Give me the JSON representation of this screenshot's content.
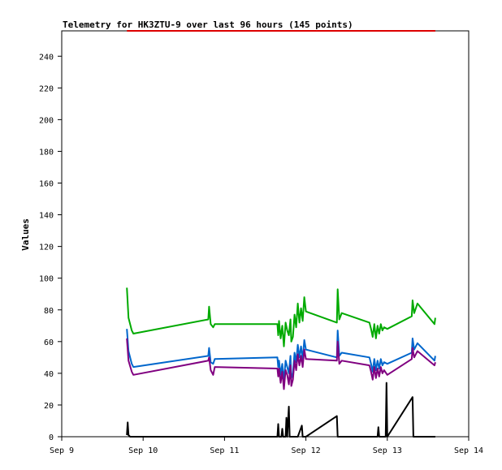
{
  "chart_data": {
    "type": "line",
    "title": "Telemetry for HK3ZTU-9 over last 96 hours (145 points)",
    "xlabel": "",
    "ylabel": "Values",
    "xlim": [
      "Sep 9",
      "Sep 14"
    ],
    "ylim": [
      0,
      256
    ],
    "x_ticks": [
      "Sep 9",
      "Sep 10",
      "Sep 11",
      "Sep 12",
      "Sep 13",
      "Sep 14"
    ],
    "y_ticks": [
      0,
      20,
      40,
      60,
      80,
      100,
      120,
      140,
      160,
      180,
      200,
      220,
      240
    ],
    "grid": false,
    "legend": "none",
    "series": [
      {
        "color": "#00aa00",
        "points": [
          [
            9.8,
            94
          ],
          [
            9.82,
            75
          ],
          [
            9.86,
            67
          ],
          [
            9.88,
            65
          ],
          [
            10.8,
            74
          ],
          [
            10.81,
            82
          ],
          [
            10.83,
            71
          ],
          [
            10.86,
            69
          ],
          [
            10.88,
            71
          ],
          [
            11.65,
            71
          ],
          [
            11.66,
            64
          ],
          [
            11.67,
            73
          ],
          [
            11.69,
            62
          ],
          [
            11.71,
            70
          ],
          [
            11.73,
            57
          ],
          [
            11.75,
            72
          ],
          [
            11.77,
            67
          ],
          [
            11.79,
            64
          ],
          [
            11.81,
            74
          ],
          [
            11.82,
            60
          ],
          [
            11.84,
            63
          ],
          [
            11.86,
            77
          ],
          [
            11.88,
            69
          ],
          [
            11.9,
            84
          ],
          [
            11.92,
            72
          ],
          [
            11.94,
            81
          ],
          [
            11.96,
            73
          ],
          [
            11.98,
            88
          ],
          [
            12.0,
            79
          ],
          [
            12.38,
            72
          ],
          [
            12.39,
            93
          ],
          [
            12.41,
            74
          ],
          [
            12.44,
            78
          ],
          [
            12.78,
            72
          ],
          [
            12.8,
            68
          ],
          [
            12.82,
            63
          ],
          [
            12.84,
            71
          ],
          [
            12.86,
            62
          ],
          [
            12.88,
            70
          ],
          [
            12.9,
            65
          ],
          [
            12.92,
            71
          ],
          [
            12.94,
            67
          ],
          [
            12.96,
            69
          ],
          [
            13.0,
            68
          ],
          [
            13.3,
            76
          ],
          [
            13.31,
            86
          ],
          [
            13.33,
            78
          ],
          [
            13.37,
            84
          ],
          [
            13.58,
            71
          ],
          [
            13.59,
            75
          ]
        ]
      },
      {
        "color": "#0066cc",
        "points": [
          [
            9.8,
            68
          ],
          [
            9.82,
            54
          ],
          [
            9.86,
            46
          ],
          [
            9.88,
            44
          ],
          [
            10.8,
            51
          ],
          [
            10.81,
            56
          ],
          [
            10.83,
            47
          ],
          [
            10.86,
            46
          ],
          [
            10.88,
            49
          ],
          [
            11.65,
            50
          ],
          [
            11.66,
            44
          ],
          [
            11.67,
            48
          ],
          [
            11.69,
            39
          ],
          [
            11.71,
            46
          ],
          [
            11.73,
            35
          ],
          [
            11.75,
            48
          ],
          [
            11.77,
            44
          ],
          [
            11.79,
            40
          ],
          [
            11.81,
            51
          ],
          [
            11.82,
            37
          ],
          [
            11.84,
            40
          ],
          [
            11.86,
            53
          ],
          [
            11.88,
            47
          ],
          [
            11.9,
            58
          ],
          [
            11.92,
            50
          ],
          [
            11.94,
            57
          ],
          [
            11.96,
            49
          ],
          [
            11.98,
            61
          ],
          [
            12.0,
            55
          ],
          [
            12.38,
            50
          ],
          [
            12.39,
            67
          ],
          [
            12.41,
            51
          ],
          [
            12.44,
            53
          ],
          [
            12.78,
            50
          ],
          [
            12.8,
            46
          ],
          [
            12.82,
            41
          ],
          [
            12.84,
            49
          ],
          [
            12.86,
            42
          ],
          [
            12.88,
            48
          ],
          [
            12.9,
            43
          ],
          [
            12.92,
            49
          ],
          [
            12.94,
            45
          ],
          [
            12.96,
            47
          ],
          [
            13.0,
            46
          ],
          [
            13.3,
            53
          ],
          [
            13.31,
            62
          ],
          [
            13.33,
            55
          ],
          [
            13.37,
            59
          ],
          [
            13.58,
            48
          ],
          [
            13.59,
            51
          ]
        ]
      },
      {
        "color": "#800080",
        "points": [
          [
            9.8,
            62
          ],
          [
            9.82,
            48
          ],
          [
            9.86,
            41
          ],
          [
            9.88,
            39
          ],
          [
            10.8,
            48
          ],
          [
            10.81,
            50
          ],
          [
            10.83,
            42
          ],
          [
            10.86,
            39
          ],
          [
            10.88,
            44
          ],
          [
            11.65,
            43
          ],
          [
            11.66,
            38
          ],
          [
            11.67,
            43
          ],
          [
            11.69,
            34
          ],
          [
            11.71,
            41
          ],
          [
            11.73,
            30
          ],
          [
            11.75,
            42
          ],
          [
            11.77,
            39
          ],
          [
            11.79,
            33
          ],
          [
            11.81,
            45
          ],
          [
            11.82,
            32
          ],
          [
            11.84,
            36
          ],
          [
            11.86,
            48
          ],
          [
            11.88,
            42
          ],
          [
            11.9,
            52
          ],
          [
            11.92,
            45
          ],
          [
            11.94,
            51
          ],
          [
            11.96,
            44
          ],
          [
            11.98,
            55
          ],
          [
            12.0,
            49
          ],
          [
            12.38,
            48
          ],
          [
            12.39,
            60
          ],
          [
            12.41,
            46
          ],
          [
            12.44,
            48
          ],
          [
            12.78,
            45
          ],
          [
            12.8,
            41
          ],
          [
            12.82,
            36
          ],
          [
            12.84,
            44
          ],
          [
            12.86,
            37
          ],
          [
            12.88,
            43
          ],
          [
            12.9,
            38
          ],
          [
            12.92,
            44
          ],
          [
            12.94,
            40
          ],
          [
            12.96,
            42
          ],
          [
            13.0,
            39
          ],
          [
            13.3,
            49
          ],
          [
            13.31,
            56
          ],
          [
            13.33,
            50
          ],
          [
            13.37,
            54
          ],
          [
            13.58,
            45
          ],
          [
            13.59,
            47
          ]
        ]
      },
      {
        "color": "#000000",
        "points": [
          [
            9.8,
            1
          ],
          [
            9.81,
            9
          ],
          [
            9.82,
            1
          ],
          [
            9.84,
            0
          ],
          [
            10.8,
            0
          ],
          [
            11.65,
            0
          ],
          [
            11.66,
            8
          ],
          [
            11.67,
            0
          ],
          [
            11.7,
            0
          ],
          [
            11.71,
            5
          ],
          [
            11.72,
            0
          ],
          [
            11.75,
            0
          ],
          [
            11.76,
            12
          ],
          [
            11.77,
            0
          ],
          [
            11.79,
            19
          ],
          [
            11.8,
            0
          ],
          [
            11.9,
            0
          ],
          [
            11.95,
            7
          ],
          [
            11.96,
            0
          ],
          [
            12.0,
            0
          ],
          [
            12.38,
            13
          ],
          [
            12.39,
            0
          ],
          [
            12.88,
            0
          ],
          [
            12.89,
            6
          ],
          [
            12.9,
            0
          ],
          [
            12.98,
            0
          ],
          [
            12.99,
            34
          ],
          [
            13.0,
            0
          ],
          [
            13.31,
            25
          ],
          [
            13.32,
            0
          ],
          [
            13.59,
            0
          ]
        ]
      },
      {
        "color": "#dd0000",
        "points": [
          [
            9.8,
            256
          ],
          [
            13.59,
            256
          ]
        ]
      }
    ]
  }
}
